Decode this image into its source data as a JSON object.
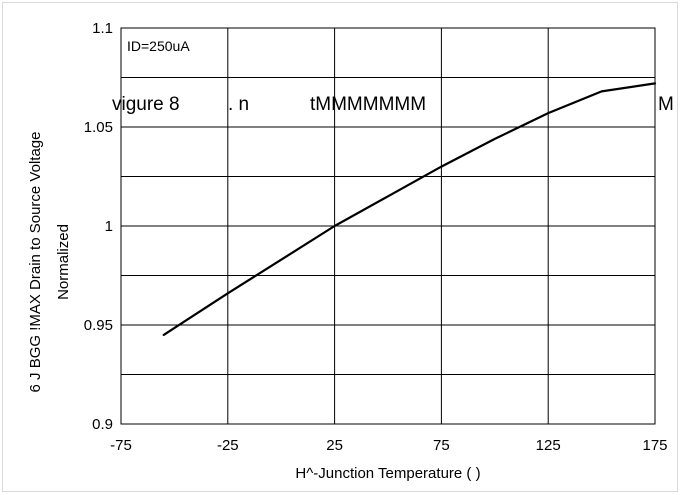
{
  "chart_data": {
    "type": "line",
    "title": "",
    "xlabel": "H^-Junction Temperature (   )",
    "ylabel_lines": [
      "6 J BGG !MAX Drain to Source Voltage",
      "Normalized"
    ],
    "xlim": [
      -75,
      175
    ],
    "ylim": [
      0.9,
      1.1
    ],
    "x_ticks": [
      -75,
      -25,
      25,
      75,
      125,
      175
    ],
    "x_tick_labels": [
      "-75",
      "-25",
      "25",
      "75",
      "125",
      "175"
    ],
    "y_ticks": [
      0.9,
      0.95,
      1,
      1.05,
      1.1
    ],
    "y_tick_labels": [
      "0.9",
      "0.95",
      "1",
      "1.05",
      "1.1"
    ],
    "grid": true,
    "legend": "none",
    "annotation": "ID=250uA",
    "overlay_text": [
      "vigure 8",
      ". n",
      "tMMMMMMM",
      "M"
    ],
    "series": [
      {
        "color": "#000000",
        "x": [
          -55,
          -25,
          0,
          25,
          50,
          75,
          100,
          125,
          150,
          175
        ],
        "y": [
          0.945,
          0.966,
          0.983,
          1.0,
          1.015,
          1.03,
          1.044,
          1.057,
          1.068,
          1.072
        ]
      }
    ]
  }
}
